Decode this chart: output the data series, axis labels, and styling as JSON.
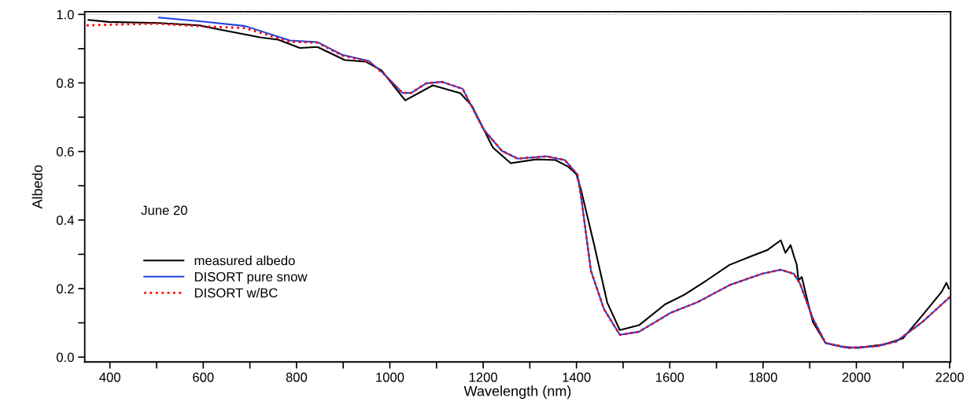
{
  "chart_data": {
    "type": "line",
    "xlabel": "Wavelength (nm)",
    "ylabel": "Albedo",
    "annotations": [
      "June 20"
    ],
    "xlim": [
      346,
      2202
    ],
    "ylim": [
      -0.014,
      1.008
    ],
    "xticks": [
      400,
      {
        "value": 500,
        "label": null
      },
      600,
      {
        "value": 700,
        "label": null
      },
      800,
      {
        "value": 900,
        "label": null
      },
      1000,
      {
        "value": 1100,
        "label": null
      },
      1200,
      {
        "value": 1300,
        "label": null
      },
      1400,
      {
        "value": 1500,
        "label": null
      },
      1600,
      {
        "value": 1700,
        "label": null
      },
      1800,
      {
        "value": 1900,
        "label": null
      },
      2000,
      {
        "value": 2100,
        "label": null
      },
      2200
    ],
    "yticks": [
      {
        "value": 0,
        "label": "0.0"
      },
      {
        "value": 0.1,
        "label": null
      },
      {
        "value": 0.2,
        "label": "0.2"
      },
      {
        "value": 0.3,
        "label": null
      },
      {
        "value": 0.4,
        "label": "0.4"
      },
      {
        "value": 0.5,
        "label": null
      },
      {
        "value": 0.6,
        "label": "0.6"
      },
      {
        "value": 0.7,
        "label": null
      },
      {
        "value": 0.8,
        "label": "0.8"
      },
      {
        "value": 0.9,
        "label": null
      },
      {
        "value": 1.0,
        "label": "1.0"
      }
    ],
    "grid": false,
    "legend": "left",
    "ref_lines": [
      {
        "axis": "y",
        "value": 1.0,
        "color": "#808080",
        "line_style": "dotted"
      }
    ],
    "series": [
      {
        "name": "measured albedo",
        "color": "#000000",
        "line_style": "solid",
        "x": [
          354,
          397,
          505,
          592,
          624,
          722,
          761,
          807,
          845,
          903,
          948,
          982,
          1033,
          1092,
          1151,
          1176,
          1221,
          1259,
          1314,
          1355,
          1382,
          1400,
          1410,
          1438,
          1466,
          1493,
          1534,
          1590,
          1631,
          1679,
          1728,
          1776,
          1810,
          1838,
          1848,
          1859,
          1866,
          1872,
          1876,
          1883,
          1897,
          1907,
          1934,
          1969,
          2003,
          2059,
          2100,
          2141,
          2183,
          2193,
          2198
        ],
        "values": [
          0.984,
          0.978,
          0.975,
          0.968,
          0.959,
          0.933,
          0.926,
          0.902,
          0.905,
          0.867,
          0.862,
          0.837,
          0.749,
          0.793,
          0.77,
          0.733,
          0.611,
          0.566,
          0.577,
          0.575,
          0.556,
          0.533,
          0.487,
          0.327,
          0.159,
          0.079,
          0.093,
          0.154,
          0.182,
          0.224,
          0.269,
          0.295,
          0.313,
          0.341,
          0.304,
          0.327,
          0.295,
          0.271,
          0.224,
          0.234,
          0.154,
          0.102,
          0.041,
          0.03,
          0.027,
          0.037,
          0.055,
          0.121,
          0.191,
          0.217,
          0.2
        ]
      },
      {
        "name": "DISORT pure snow",
        "color": "#1f45e0",
        "line_style": "solid",
        "x": [
          505,
          592,
          690,
          786,
          845,
          898,
          955,
          987,
          1027,
          1046,
          1078,
          1112,
          1156,
          1201,
          1240,
          1274,
          1335,
          1375,
          1402,
          1410,
          1431,
          1459,
          1493,
          1534,
          1603,
          1659,
          1728,
          1797,
          1838,
          1866,
          1879,
          1907,
          1934,
          1983,
          2045,
          2086,
          2141,
          2200
        ],
        "values": [
          0.991,
          0.98,
          0.966,
          0.924,
          0.919,
          0.882,
          0.864,
          0.827,
          0.771,
          0.771,
          0.799,
          0.803,
          0.783,
          0.664,
          0.602,
          0.579,
          0.586,
          0.575,
          0.533,
          0.468,
          0.252,
          0.14,
          0.065,
          0.074,
          0.13,
          0.16,
          0.21,
          0.243,
          0.255,
          0.243,
          0.215,
          0.112,
          0.041,
          0.027,
          0.032,
          0.046,
          0.102,
          0.175
        ]
      },
      {
        "name": "DISORT w/BC",
        "color": "#ff0000",
        "line_style": "dotted",
        "x": [
          350,
          400,
          500,
          600,
          690,
          786,
          845,
          898,
          955,
          987,
          1027,
          1046,
          1078,
          1112,
          1156,
          1201,
          1240,
          1274,
          1335,
          1375,
          1402,
          1410,
          1431,
          1459,
          1493,
          1534,
          1603,
          1659,
          1728,
          1797,
          1838,
          1866,
          1879,
          1907,
          1934,
          1983,
          2045,
          2086,
          2141,
          2200
        ],
        "values": [
          0.968,
          0.97,
          0.973,
          0.965,
          0.96,
          0.92,
          0.917,
          0.88,
          0.862,
          0.826,
          0.771,
          0.771,
          0.799,
          0.803,
          0.783,
          0.664,
          0.602,
          0.579,
          0.586,
          0.575,
          0.533,
          0.468,
          0.252,
          0.14,
          0.065,
          0.074,
          0.13,
          0.16,
          0.21,
          0.243,
          0.255,
          0.243,
          0.215,
          0.112,
          0.041,
          0.027,
          0.032,
          0.046,
          0.102,
          0.175
        ]
      }
    ]
  }
}
